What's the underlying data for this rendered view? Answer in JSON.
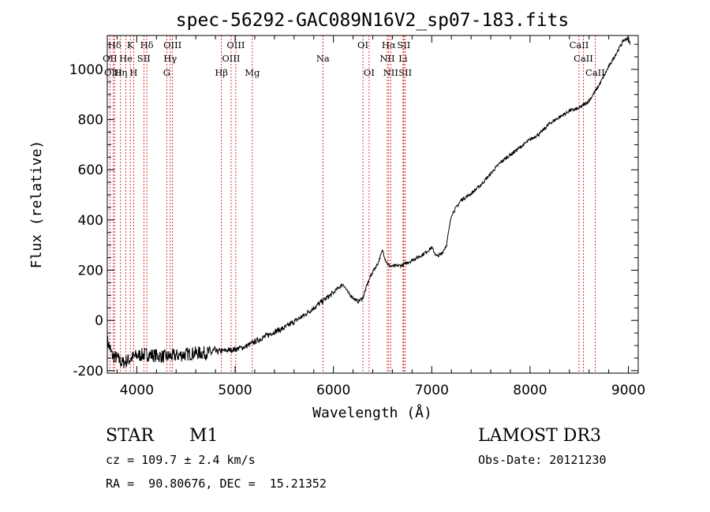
{
  "chart_data": {
    "type": "line",
    "title": "spec-56292-GAC089N16V2_sp07-183.fits",
    "xlabel": "Wavelength (Å)",
    "ylabel": "Flux (relative)",
    "xlim": [
      3700,
      9100
    ],
    "ylim": [
      -210,
      1135
    ],
    "xticks": [
      4000,
      5000,
      6000,
      7000,
      8000,
      9000
    ],
    "yticks": [
      -200,
      0,
      200,
      400,
      600,
      800,
      1000
    ],
    "spectrum": {
      "wavelength": [
        3700,
        3750,
        3800,
        3850,
        3900,
        3950,
        4000,
        4100,
        4200,
        4300,
        4400,
        4500,
        4600,
        4700,
        4800,
        4900,
        5000,
        5100,
        5200,
        5300,
        5400,
        5500,
        5600,
        5700,
        5800,
        5900,
        6000,
        6050,
        6100,
        6150,
        6200,
        6250,
        6300,
        6350,
        6400,
        6450,
        6500,
        6530,
        6560,
        6600,
        6700,
        6800,
        6900,
        7000,
        7050,
        7100,
        7150,
        7200,
        7300,
        7400,
        7500,
        7600,
        7700,
        7800,
        7900,
        8000,
        8100,
        8200,
        8300,
        8400,
        8500,
        8550,
        8600,
        8700,
        8800,
        8900,
        8950,
        9000,
        9020
      ],
      "flux": [
        -80,
        -140,
        -150,
        -170,
        -160,
        -150,
        -140,
        -135,
        -140,
        -145,
        -140,
        -135,
        -130,
        -130,
        -125,
        -120,
        -115,
        -105,
        -85,
        -65,
        -45,
        -30,
        -5,
        20,
        50,
        80,
        110,
        130,
        145,
        110,
        90,
        75,
        90,
        150,
        195,
        225,
        280,
        240,
        220,
        215,
        220,
        240,
        260,
        290,
        255,
        265,
        300,
        420,
        480,
        505,
        540,
        585,
        630,
        660,
        690,
        720,
        745,
        785,
        810,
        835,
        845,
        860,
        875,
        935,
        1010,
        1080,
        1115,
        1125,
        1095
      ]
    },
    "emission_lines": [
      {
        "label": "Hδ",
        "x": 3775,
        "row": 1
      },
      {
        "label": "K",
        "x": 3934,
        "row": 1
      },
      {
        "label": "Hδ",
        "x": 4102,
        "row": 1
      },
      {
        "label": "OIII",
        "x": 4363,
        "row": 1
      },
      {
        "label": "OIII",
        "x": 5007,
        "row": 1
      },
      {
        "label": "OI",
        "x": 6300,
        "row": 1
      },
      {
        "label": "Hα",
        "x": 6563,
        "row": 1
      },
      {
        "label": "SII",
        "x": 6716,
        "row": 1
      },
      {
        "label": "CaII",
        "x": 8498,
        "row": 1
      },
      {
        "label": "OII",
        "x": 3727,
        "row": 2
      },
      {
        "label": "He",
        "x": 3889,
        "row": 2
      },
      {
        "label": "SII",
        "x": 4072,
        "row": 2
      },
      {
        "label": "Hγ",
        "x": 4340,
        "row": 2
      },
      {
        "label": "OIII",
        "x": 4959,
        "row": 2
      },
      {
        "label": "Na",
        "x": 5893,
        "row": 2
      },
      {
        "label": "NII",
        "x": 6548,
        "row": 2
      },
      {
        "label": "Li",
        "x": 6708,
        "row": 2
      },
      {
        "label": "CaII",
        "x": 8542,
        "row": 2
      },
      {
        "label": "OIII",
        "x": 3760,
        "row": 3
      },
      {
        "label": "Hη",
        "x": 3835,
        "row": 3
      },
      {
        "label": "H",
        "x": 3968,
        "row": 3
      },
      {
        "label": "G",
        "x": 4305,
        "row": 3
      },
      {
        "label": "Hβ",
        "x": 4861,
        "row": 3
      },
      {
        "label": "Mg",
        "x": 5175,
        "row": 3
      },
      {
        "label": "OI",
        "x": 6363,
        "row": 3
      },
      {
        "label": "NII",
        "x": 6583,
        "row": 3
      },
      {
        "label": "SII",
        "x": 6731,
        "row": 3
      },
      {
        "label": "CaII",
        "x": 8662,
        "row": 3
      }
    ],
    "line_color": "#000000",
    "marker_color": "#cc0000"
  },
  "info": {
    "object_class": "STAR",
    "subclass": "M1",
    "survey": "LAMOST DR3",
    "redshift": "cz = 109.7 ± 2.4 km/s",
    "obs_date": "Obs-Date: 20121230",
    "coords": "RA =  90.80676, DEC =  15.21352"
  }
}
